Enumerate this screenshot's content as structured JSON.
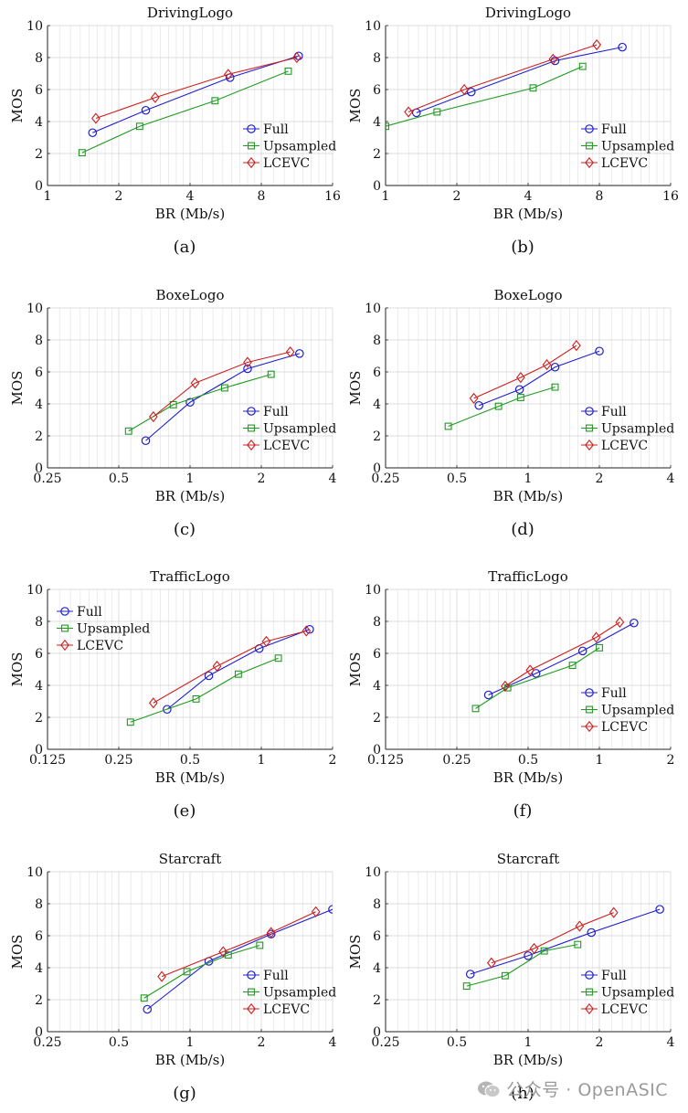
{
  "colors": {
    "full": "#1f1fd0",
    "upsampled": "#1f9a1f",
    "lcevc": "#cc1f1f",
    "grid": "#e4e4e4",
    "axis": "#222222"
  },
  "watermark": {
    "text": "公众号 · OpenASIC",
    "icon": "wechat-icon"
  },
  "chart_data": [
    {
      "type": "line",
      "title": "DrivingLogo",
      "caption": "(a)",
      "xlabel": "BR (Mb/s)",
      "ylabel": "MOS",
      "xscale": "log2",
      "xlim": [
        1,
        16
      ],
      "ylim": [
        0,
        10
      ],
      "xticks": [
        1,
        2,
        4,
        8,
        16
      ],
      "xtick_labels": [
        "1",
        "2",
        "4",
        "8",
        "16"
      ],
      "yticks": [
        0,
        2,
        4,
        6,
        8,
        10
      ],
      "ytick_labels": [
        "0",
        "2",
        "4",
        "6",
        "8",
        "10"
      ],
      "legend": "bottom-right",
      "series": [
        {
          "name": "Full",
          "marker": "circle",
          "x": [
            1.55,
            2.6,
            5.9,
            11.5
          ],
          "y": [
            3.3,
            4.7,
            6.75,
            8.1
          ]
        },
        {
          "name": "Upsampled",
          "marker": "square",
          "x": [
            1.4,
            2.45,
            5.1,
            10.4
          ],
          "y": [
            2.05,
            3.7,
            5.3,
            7.15
          ]
        },
        {
          "name": "LCEVC",
          "marker": "diamond",
          "x": [
            1.6,
            2.85,
            5.8,
            11.3
          ],
          "y": [
            4.2,
            5.5,
            6.95,
            8.0
          ]
        }
      ]
    },
    {
      "type": "line",
      "title": "DrivingLogo",
      "caption": "(b)",
      "xlabel": "BR (Mb/s)",
      "ylabel": "MOS",
      "xscale": "log2",
      "xlim": [
        1,
        16
      ],
      "ylim": [
        0,
        10
      ],
      "xticks": [
        1,
        2,
        4,
        8,
        16
      ],
      "xtick_labels": [
        "1",
        "2",
        "4",
        "8",
        "16"
      ],
      "yticks": [
        0,
        2,
        4,
        6,
        8,
        10
      ],
      "ytick_labels": [
        "0",
        "2",
        "4",
        "6",
        "8",
        "10"
      ],
      "legend": "bottom-right",
      "series": [
        {
          "name": "Full",
          "marker": "circle",
          "x": [
            1.35,
            2.3,
            5.2,
            10.0
          ],
          "y": [
            4.55,
            5.85,
            7.8,
            8.65
          ]
        },
        {
          "name": "Upsampled",
          "marker": "square",
          "x": [
            1.0,
            1.65,
            4.2,
            6.8
          ],
          "y": [
            3.7,
            4.6,
            6.1,
            7.45
          ]
        },
        {
          "name": "LCEVC",
          "marker": "diamond",
          "x": [
            1.25,
            2.15,
            5.1,
            7.8
          ],
          "y": [
            4.6,
            6.0,
            7.9,
            8.8
          ]
        }
      ]
    },
    {
      "type": "line",
      "title": "BoxeLogo",
      "caption": "(c)",
      "xlabel": "BR (Mb/s)",
      "ylabel": "MOS",
      "xscale": "log2",
      "xlim": [
        0.25,
        4
      ],
      "ylim": [
        0,
        10
      ],
      "xticks": [
        0.25,
        0.5,
        1,
        2,
        4
      ],
      "xtick_labels": [
        "0.25",
        "0.5",
        "1",
        "2",
        "4"
      ],
      "yticks": [
        0,
        2,
        4,
        6,
        8,
        10
      ],
      "ytick_labels": [
        "0",
        "2",
        "4",
        "6",
        "8",
        "10"
      ],
      "legend": "bottom-right",
      "series": [
        {
          "name": "Full",
          "marker": "circle",
          "x": [
            0.65,
            1.0,
            1.75,
            2.9
          ],
          "y": [
            1.7,
            4.1,
            6.2,
            7.15
          ]
        },
        {
          "name": "Upsampled",
          "marker": "square",
          "x": [
            0.55,
            0.85,
            1.4,
            2.2
          ],
          "y": [
            2.3,
            3.95,
            5.0,
            5.85
          ]
        },
        {
          "name": "LCEVC",
          "marker": "diamond",
          "x": [
            0.7,
            1.05,
            1.75,
            2.65
          ],
          "y": [
            3.2,
            5.3,
            6.6,
            7.25
          ]
        }
      ]
    },
    {
      "type": "line",
      "title": "BoxeLogo",
      "caption": "(d)",
      "xlabel": "BR (Mb/s)",
      "ylabel": "MOS",
      "xscale": "log2",
      "xlim": [
        0.25,
        4
      ],
      "ylim": [
        0,
        10
      ],
      "xticks": [
        0.25,
        0.5,
        1,
        2,
        4
      ],
      "xtick_labels": [
        "0.25",
        "0.5",
        "1",
        "2",
        "4"
      ],
      "yticks": [
        0,
        2,
        4,
        6,
        8,
        10
      ],
      "ytick_labels": [
        "0",
        "2",
        "4",
        "6",
        "8",
        "10"
      ],
      "legend": "bottom-right",
      "series": [
        {
          "name": "Full",
          "marker": "circle",
          "x": [
            0.62,
            0.92,
            1.3,
            2.0
          ],
          "y": [
            3.9,
            4.9,
            6.3,
            7.3
          ]
        },
        {
          "name": "Upsampled",
          "marker": "square",
          "x": [
            0.46,
            0.75,
            0.93,
            1.3
          ],
          "y": [
            2.6,
            3.85,
            4.4,
            5.05
          ]
        },
        {
          "name": "LCEVC",
          "marker": "diamond",
          "x": [
            0.59,
            0.93,
            1.2,
            1.6
          ],
          "y": [
            4.35,
            5.65,
            6.45,
            7.65
          ]
        }
      ]
    },
    {
      "type": "line",
      "title": "TrafficLogo",
      "caption": "(e)",
      "xlabel": "BR (Mb/s)",
      "ylabel": "MOS",
      "xscale": "log2",
      "xlim": [
        0.125,
        2
      ],
      "ylim": [
        0,
        10
      ],
      "xticks": [
        0.125,
        0.25,
        0.5,
        1,
        2
      ],
      "xtick_labels": [
        "0.125",
        "0.25",
        "0.5",
        "1",
        "2"
      ],
      "yticks": [
        0,
        2,
        4,
        6,
        8,
        10
      ],
      "ytick_labels": [
        "0",
        "2",
        "4",
        "6",
        "8",
        "10"
      ],
      "legend": "top-left",
      "series": [
        {
          "name": "Full",
          "marker": "circle",
          "x": [
            0.4,
            0.6,
            0.98,
            1.6
          ],
          "y": [
            2.5,
            4.6,
            6.3,
            7.5
          ]
        },
        {
          "name": "Upsampled",
          "marker": "square",
          "x": [
            0.28,
            0.53,
            0.8,
            1.18
          ],
          "y": [
            1.7,
            3.15,
            4.7,
            5.7
          ]
        },
        {
          "name": "LCEVC",
          "marker": "diamond",
          "x": [
            0.35,
            0.65,
            1.05,
            1.55
          ],
          "y": [
            2.9,
            5.2,
            6.75,
            7.4
          ]
        }
      ]
    },
    {
      "type": "line",
      "title": "TrafficLogo",
      "caption": "(f)",
      "xlabel": "BR (Mb/s)",
      "ylabel": "MOS",
      "xscale": "log2",
      "xlim": [
        0.125,
        2
      ],
      "ylim": [
        0,
        10
      ],
      "xticks": [
        0.125,
        0.25,
        0.5,
        1,
        2
      ],
      "xtick_labels": [
        "0.125",
        "0.25",
        "0.5",
        "1",
        "2"
      ],
      "yticks": [
        0,
        2,
        4,
        6,
        8,
        10
      ],
      "ytick_labels": [
        "0",
        "2",
        "4",
        "6",
        "8",
        "10"
      ],
      "legend": "bottom-right",
      "series": [
        {
          "name": "Full",
          "marker": "circle",
          "x": [
            0.34,
            0.54,
            0.85,
            1.4
          ],
          "y": [
            3.4,
            4.75,
            6.15,
            7.9
          ]
        },
        {
          "name": "Upsampled",
          "marker": "square",
          "x": [
            0.3,
            0.41,
            0.77,
            1.0
          ],
          "y": [
            2.55,
            3.85,
            5.25,
            6.35
          ]
        },
        {
          "name": "LCEVC",
          "marker": "diamond",
          "x": [
            0.4,
            0.51,
            0.97,
            1.22
          ],
          "y": [
            3.95,
            4.95,
            7.0,
            7.95
          ]
        }
      ]
    },
    {
      "type": "line",
      "title": "Starcraft",
      "caption": "(g)",
      "xlabel": "BR (Mb/s)",
      "ylabel": "MOS",
      "xscale": "log2",
      "xlim": [
        0.25,
        4
      ],
      "ylim": [
        0,
        10
      ],
      "xticks": [
        0.25,
        0.5,
        1,
        2,
        4
      ],
      "xtick_labels": [
        "0.25",
        "0.5",
        "1",
        "2",
        "4"
      ],
      "yticks": [
        0,
        2,
        4,
        6,
        8,
        10
      ],
      "ytick_labels": [
        "0",
        "2",
        "4",
        "6",
        "8",
        "10"
      ],
      "legend": "bottom-right",
      "series": [
        {
          "name": "Full",
          "marker": "circle",
          "x": [
            0.66,
            1.2,
            2.2,
            4.0
          ],
          "y": [
            1.4,
            4.4,
            6.1,
            7.65
          ]
        },
        {
          "name": "Upsampled",
          "marker": "square",
          "x": [
            0.64,
            0.97,
            1.45,
            1.97
          ],
          "y": [
            2.1,
            3.75,
            4.8,
            5.4
          ]
        },
        {
          "name": "LCEVC",
          "marker": "diamond",
          "x": [
            0.76,
            1.38,
            2.2,
            3.4
          ],
          "y": [
            3.45,
            5.0,
            6.2,
            7.5
          ]
        }
      ]
    },
    {
      "type": "line",
      "title": "Starcraft",
      "caption": "(h)",
      "xlabel": "BR (Mb/s)",
      "ylabel": "MOS",
      "xscale": "log2",
      "xlim": [
        0.25,
        4
      ],
      "ylim": [
        0,
        10
      ],
      "xticks": [
        0.25,
        0.5,
        1,
        2,
        4
      ],
      "xtick_labels": [
        "0.25",
        "0.5",
        "1",
        "2",
        "4"
      ],
      "yticks": [
        0,
        2,
        4,
        6,
        8,
        10
      ],
      "ytick_labels": [
        "0",
        "2",
        "4",
        "6",
        "8",
        "10"
      ],
      "legend": "bottom-right",
      "series": [
        {
          "name": "Full",
          "marker": "circle",
          "x": [
            0.57,
            1.0,
            1.85,
            3.6
          ],
          "y": [
            3.6,
            4.75,
            6.2,
            7.65
          ]
        },
        {
          "name": "Upsampled",
          "marker": "square",
          "x": [
            0.55,
            0.8,
            1.17,
            1.62
          ],
          "y": [
            2.85,
            3.5,
            5.05,
            5.45
          ]
        },
        {
          "name": "LCEVC",
          "marker": "diamond",
          "x": [
            0.7,
            1.06,
            1.65,
            2.3
          ],
          "y": [
            4.3,
            5.2,
            6.6,
            7.45
          ]
        }
      ]
    }
  ]
}
